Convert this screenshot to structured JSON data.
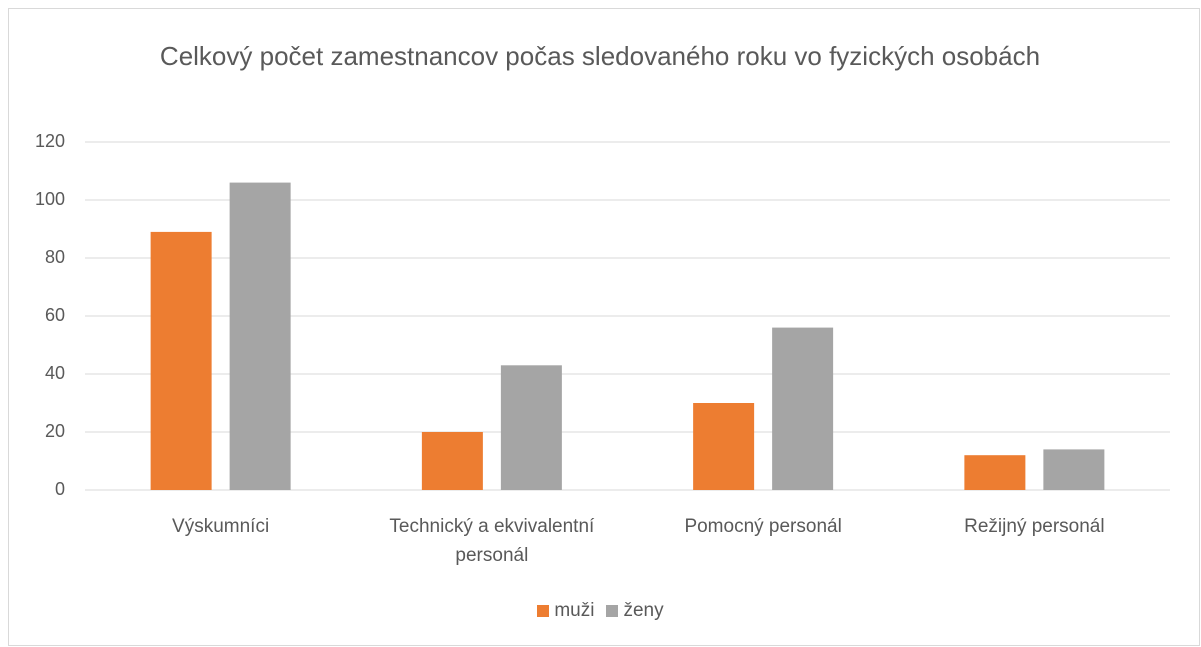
{
  "chart_data": {
    "type": "bar",
    "title": "Celkový počet zamestnancov počas sledovaného roku vo fyzických osobách",
    "categories": [
      "Výskumníci",
      "Technický a ekvivalentní personál",
      "Pomocný personál",
      "Režijný personál"
    ],
    "series": [
      {
        "name": "muži",
        "color": "#ed7d31",
        "values": [
          89,
          20,
          30,
          12
        ]
      },
      {
        "name": "ženy",
        "color": "#a5a5a5",
        "values": [
          106,
          43,
          56,
          14
        ]
      }
    ],
    "ylim": [
      0,
      120
    ],
    "yticks": [
      0,
      20,
      40,
      60,
      80,
      100,
      120
    ],
    "grid": true,
    "legend": "bottom"
  }
}
